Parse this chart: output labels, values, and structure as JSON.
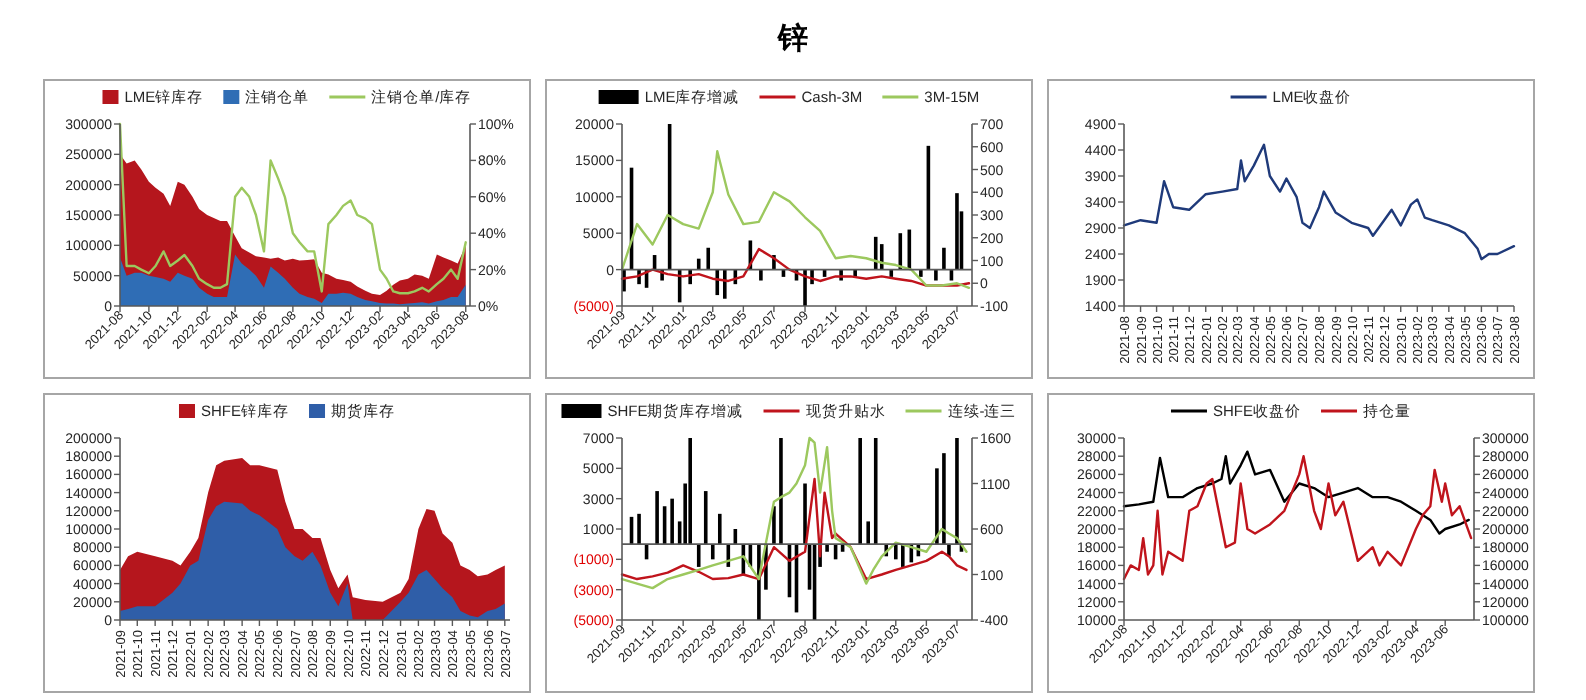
{
  "chart_data": [
    {
      "type": "area",
      "legend": "top",
      "x": [
        "2021-08-01",
        "2021-08-15",
        "2021-09-01",
        "2021-09-15",
        "2021-10-01",
        "2021-10-15",
        "2021-11-01",
        "2021-11-15",
        "2021-12-01",
        "2021-12-15",
        "2022-01-01",
        "2022-01-15",
        "2022-02-01",
        "2022-02-15",
        "2022-03-01",
        "2022-03-15",
        "2022-04-01",
        "2022-04-15",
        "2022-05-01",
        "2022-05-15",
        "2022-06-01",
        "2022-06-15",
        "2022-07-01",
        "2022-07-15",
        "2022-08-01",
        "2022-08-15",
        "2022-09-01",
        "2022-09-15",
        "2022-10-01",
        "2022-10-15",
        "2022-11-01",
        "2022-11-15",
        "2022-12-01",
        "2022-12-15",
        "2023-01-01",
        "2023-01-15",
        "2023-02-01",
        "2023-02-15",
        "2023-03-01",
        "2023-03-15",
        "2023-04-01",
        "2023-04-15",
        "2023-05-01",
        "2023-05-15",
        "2023-06-01",
        "2023-06-15",
        "2023-07-01",
        "2023-07-15",
        "2023-08-01"
      ],
      "series": [
        {
          "name": "LME锌库存",
          "color": "#b5161d",
          "values": [
            250000,
            235000,
            240000,
            225000,
            205000,
            195000,
            185000,
            165000,
            205000,
            200000,
            180000,
            160000,
            150000,
            145000,
            140000,
            140000,
            115000,
            95000,
            88000,
            82000,
            80000,
            78000,
            80000,
            75000,
            78000,
            75000,
            76000,
            77000,
            55000,
            52000,
            45000,
            43000,
            40000,
            32000,
            25000,
            20000,
            18000,
            25000,
            35000,
            42000,
            45000,
            52000,
            50000,
            45000,
            85000,
            80000,
            75000,
            70000,
            100000
          ]
        },
        {
          "name": "注销仓单",
          "color": "#2f6db5",
          "values": [
            80000,
            50000,
            55000,
            55000,
            50000,
            48000,
            45000,
            40000,
            55000,
            50000,
            45000,
            30000,
            20000,
            15000,
            15000,
            15000,
            85000,
            70000,
            60000,
            50000,
            30000,
            65000,
            55000,
            45000,
            30000,
            20000,
            15000,
            12000,
            5000,
            20000,
            20000,
            22000,
            20000,
            15000,
            10000,
            8000,
            5000,
            4000,
            4000,
            3000,
            4000,
            5000,
            6000,
            4000,
            8000,
            10000,
            15000,
            15000,
            35000
          ]
        },
        {
          "name": "注销仓单/库存",
          "color": "#9cc85e",
          "type": "line",
          "axis": "y2",
          "values": [
            100,
            22,
            22,
            20,
            18,
            22,
            30,
            22,
            25,
            28,
            22,
            15,
            12,
            10,
            10,
            12,
            60,
            65,
            60,
            50,
            30,
            80,
            70,
            60,
            40,
            35,
            30,
            30,
            8,
            45,
            50,
            55,
            58,
            50,
            48,
            45,
            20,
            15,
            8,
            7,
            7,
            8,
            10,
            8,
            12,
            15,
            20,
            15,
            35
          ]
        }
      ],
      "xlim": [
        "2021-08-01",
        "2023-08-10"
      ],
      "xticks": [
        "2021-08",
        "2021-10",
        "2021-12",
        "2022-02",
        "2022-04",
        "2022-06",
        "2022-08",
        "2022-10",
        "2022-12",
        "2023-02",
        "2023-04",
        "2023-06",
        "2023-08"
      ],
      "ylim": [
        0,
        300000
      ],
      "yticks": [
        0,
        50000,
        100000,
        150000,
        200000,
        250000,
        300000
      ],
      "y2lim": [
        0,
        100
      ],
      "y2ticks": [
        {
          "value": 0,
          "label": "0%"
        },
        {
          "value": 20,
          "label": "20%"
        },
        {
          "value": 40,
          "label": "40%"
        },
        {
          "value": 60,
          "label": "60%"
        },
        {
          "value": 80,
          "label": "80%"
        },
        {
          "value": 100,
          "label": "100%"
        }
      ]
    },
    {
      "type": "bar",
      "title": "锌",
      "legend": "top",
      "series": [
        {
          "name": "LME库存增减",
          "color": "#000000",
          "x": [
            "2021-09-05",
            "2021-09-20",
            "2021-10-05",
            "2021-10-20",
            "2021-11-05",
            "2021-11-20",
            "2021-12-05",
            "2021-12-25",
            "2022-01-15",
            "2022-02-01",
            "2022-02-20",
            "2022-03-10",
            "2022-03-25",
            "2022-04-15",
            "2022-05-15",
            "2022-06-05",
            "2022-07-01",
            "2022-07-20",
            "2022-08-15",
            "2022-09-01",
            "2022-09-15",
            "2022-10-10",
            "2022-11-12",
            "2022-12-10",
            "2023-01-20",
            "2023-02-01",
            "2023-02-20",
            "2023-03-10",
            "2023-03-28",
            "2023-04-20",
            "2023-05-05",
            "2023-05-20",
            "2023-06-05",
            "2023-06-20",
            "2023-07-01",
            "2023-07-10"
          ],
          "values": [
            -3000,
            14000,
            -2000,
            -2500,
            2000,
            -1500,
            20000,
            -4500,
            -2000,
            1500,
            3000,
            -3500,
            -4000,
            -2000,
            4000,
            -1500,
            2000,
            -1000,
            -1500,
            -5000,
            -2000,
            -1000,
            -1500,
            -1000,
            4500,
            3500,
            -1000,
            5000,
            5500,
            -1000,
            17000,
            -1500,
            3000,
            -1500,
            10500,
            8000
          ]
        },
        {
          "name": "Cash-3M",
          "color": "#c0141c",
          "type": "line",
          "axis": "y2",
          "x": [
            "2021-09-01",
            "2021-10-01",
            "2021-11-01",
            "2021-12-01",
            "2022-01-01",
            "2022-02-01",
            "2022-03-01",
            "2022-04-01",
            "2022-05-01",
            "2022-06-01",
            "2022-07-01",
            "2022-08-01",
            "2022-09-01",
            "2022-10-01",
            "2022-11-01",
            "2022-12-01",
            "2023-01-01",
            "2023-02-01",
            "2023-03-01",
            "2023-04-01",
            "2023-05-01",
            "2023-06-01",
            "2023-07-01",
            "2023-07-25"
          ],
          "values": [
            20,
            30,
            60,
            40,
            30,
            40,
            20,
            10,
            30,
            150,
            110,
            60,
            30,
            10,
            30,
            30,
            20,
            30,
            20,
            10,
            -10,
            -10,
            -10,
            0
          ]
        },
        {
          "name": "3M-15M",
          "color": "#9cc85e",
          "type": "line",
          "axis": "y2",
          "x": [
            "2021-09-01",
            "2021-10-01",
            "2021-11-01",
            "2021-12-01",
            "2022-01-01",
            "2022-02-01",
            "2022-03-01",
            "2022-03-10",
            "2022-04-01",
            "2022-05-01",
            "2022-06-01",
            "2022-07-01",
            "2022-08-01",
            "2022-09-01",
            "2022-10-01",
            "2022-11-01",
            "2022-12-01",
            "2023-01-01",
            "2023-02-01",
            "2023-03-01",
            "2023-04-01",
            "2023-05-01",
            "2023-06-01",
            "2023-07-01",
            "2023-07-25"
          ],
          "values": [
            60,
            260,
            170,
            300,
            260,
            240,
            400,
            580,
            390,
            260,
            270,
            400,
            360,
            290,
            230,
            110,
            120,
            110,
            90,
            80,
            60,
            -10,
            -10,
            0,
            -20
          ]
        }
      ],
      "xlim": [
        "2021-09-01",
        "2023-07-31"
      ],
      "xticks": [
        "2021-09",
        "2021-11",
        "2022-01",
        "2022-03",
        "2022-05",
        "2022-07",
        "2022-09",
        "2022-11",
        "2023-01",
        "2023-03",
        "2023-05",
        "2023-07"
      ],
      "ylim": [
        -5000,
        20000
      ],
      "yticks": [
        {
          "value": -5000,
          "label": "(5000)"
        },
        0,
        5000,
        10000,
        15000,
        20000
      ],
      "y2lim": [
        -100,
        700
      ],
      "y2ticks": [
        -100,
        0,
        100,
        200,
        300,
        400,
        500,
        600,
        700
      ]
    },
    {
      "type": "line",
      "legend": "top",
      "series": [
        {
          "name": "LME收盘价",
          "color": "#1f3a7a",
          "x": [
            "2021-08-01",
            "2021-09-01",
            "2021-10-01",
            "2021-10-15",
            "2021-11-01",
            "2021-12-01",
            "2022-01-01",
            "2022-02-01",
            "2022-03-01",
            "2022-03-08",
            "2022-03-15",
            "2022-04-01",
            "2022-04-20",
            "2022-05-01",
            "2022-05-20",
            "2022-06-01",
            "2022-06-20",
            "2022-07-01",
            "2022-07-15",
            "2022-08-01",
            "2022-08-10",
            "2022-09-01",
            "2022-10-01",
            "2022-11-01",
            "2022-11-10",
            "2022-12-01",
            "2022-12-15",
            "2023-01-01",
            "2023-01-20",
            "2023-02-01",
            "2023-02-15",
            "2023-03-01",
            "2023-04-01",
            "2023-05-01",
            "2023-05-25",
            "2023-06-01",
            "2023-06-15",
            "2023-07-01",
            "2023-08-01"
          ],
          "values": [
            2950,
            3050,
            3000,
            3800,
            3300,
            3250,
            3550,
            3600,
            3650,
            4200,
            3800,
            4100,
            4500,
            3900,
            3600,
            3850,
            3500,
            3000,
            2900,
            3300,
            3600,
            3200,
            3000,
            2900,
            2750,
            3050,
            3250,
            2950,
            3350,
            3450,
            3100,
            3050,
            2950,
            2800,
            2500,
            2300,
            2400,
            2400,
            2550
          ]
        }
      ],
      "xlim": [
        "2021-08-01",
        "2023-08-01"
      ],
      "xticks": [
        "2021-08",
        "2021-09",
        "2021-10",
        "2021-11",
        "2021-12",
        "2022-01",
        "2022-02",
        "2022-03",
        "2022-04",
        "2022-05",
        "2022-06",
        "2022-07",
        "2022-08",
        "2022-09",
        "2022-10",
        "2022-11",
        "2022-12",
        "2023-01",
        "2023-02",
        "2023-03",
        "2023-04",
        "2023-05",
        "2023-06",
        "2023-07",
        "2023-08"
      ],
      "ylim": [
        1400,
        4900
      ],
      "yticks": [
        1400,
        1900,
        2400,
        2900,
        3400,
        3900,
        4400,
        4900
      ]
    },
    {
      "type": "area",
      "legend": "top",
      "x": [
        "2021-09-01",
        "2021-09-15",
        "2021-10-01",
        "2021-11-01",
        "2021-12-01",
        "2021-12-15",
        "2022-01-01",
        "2022-01-15",
        "2022-02-01",
        "2022-02-15",
        "2022-03-01",
        "2022-04-01",
        "2022-04-15",
        "2022-05-01",
        "2022-06-01",
        "2022-06-15",
        "2022-07-01",
        "2022-07-15",
        "2022-08-01",
        "2022-08-15",
        "2022-09-01",
        "2022-09-15",
        "2022-10-01",
        "2022-10-10",
        "2022-11-01",
        "2022-12-01",
        "2023-01-01",
        "2023-01-15",
        "2023-02-01",
        "2023-02-15",
        "2023-03-01",
        "2023-03-15",
        "2023-04-01",
        "2023-04-15",
        "2023-05-01",
        "2023-05-15",
        "2023-06-01",
        "2023-06-15",
        "2023-07-01"
      ],
      "series": [
        {
          "name": "SHFE锌库存",
          "color": "#b5161d",
          "values": [
            55000,
            70000,
            75000,
            70000,
            65000,
            60000,
            75000,
            90000,
            140000,
            170000,
            175000,
            178000,
            170000,
            170000,
            165000,
            130000,
            100000,
            100000,
            90000,
            90000,
            55000,
            35000,
            50000,
            25000,
            22000,
            20000,
            30000,
            45000,
            100000,
            122000,
            120000,
            95000,
            85000,
            60000,
            55000,
            48000,
            50000,
            55000,
            60000
          ]
        },
        {
          "name": "期货库存",
          "color": "#2f5ea8",
          "values": [
            10000,
            12000,
            15000,
            15000,
            30000,
            40000,
            60000,
            65000,
            110000,
            125000,
            130000,
            128000,
            120000,
            115000,
            100000,
            80000,
            70000,
            65000,
            75000,
            60000,
            30000,
            15000,
            40000,
            0,
            0,
            0,
            20000,
            30000,
            50000,
            55000,
            45000,
            35000,
            25000,
            10000,
            5000,
            3000,
            10000,
            12000,
            18000
          ]
        }
      ],
      "xlim": [
        "2021-09-01",
        "2023-07-10"
      ],
      "xticks": [
        "2021-09",
        "2021-10",
        "2021-11",
        "2021-12",
        "2022-01",
        "2022-02",
        "2022-03",
        "2022-04",
        "2022-05",
        "2022-06",
        "2022-07",
        "2022-08",
        "2022-09",
        "2022-10",
        "2022-11",
        "2022-12",
        "2023-01",
        "2023-02",
        "2023-03",
        "2023-04",
        "2023-05",
        "2023-06",
        "2023-07"
      ],
      "ylim": [
        0,
        200000
      ],
      "yticks": [
        0,
        20000,
        40000,
        60000,
        80000,
        100000,
        120000,
        140000,
        160000,
        180000,
        200000
      ]
    },
    {
      "type": "bar",
      "legend": "top",
      "series": [
        {
          "name": "SHFE期货库存增减",
          "color": "#000000",
          "x": [
            "2021-09-20",
            "2021-10-05",
            "2021-10-20",
            "2021-11-10",
            "2021-11-25",
            "2021-12-10",
            "2021-12-25",
            "2022-01-05",
            "2022-01-15",
            "2022-02-01",
            "2022-02-15",
            "2022-03-01",
            "2022-03-15",
            "2022-04-01",
            "2022-04-15",
            "2022-05-01",
            "2022-05-15",
            "2022-06-01",
            "2022-06-15",
            "2022-07-01",
            "2022-07-15",
            "2022-08-01",
            "2022-08-15",
            "2022-09-01",
            "2022-09-10",
            "2022-09-20",
            "2022-10-01",
            "2022-10-15",
            "2022-11-01",
            "2022-11-15",
            "2022-12-20",
            "2023-01-05",
            "2023-01-20",
            "2023-02-10",
            "2023-03-01",
            "2023-03-15",
            "2023-04-01",
            "2023-04-15",
            "2023-05-22",
            "2023-06-05",
            "2023-06-15",
            "2023-07-01",
            "2023-07-10"
          ],
          "values": [
            1800,
            2000,
            -1000,
            3500,
            2500,
            3000,
            1500,
            4000,
            7000,
            -1500,
            3500,
            -1000,
            2000,
            -1500,
            1000,
            -2000,
            -1500,
            -5000,
            -3000,
            2500,
            7000,
            -3500,
            -4500,
            4000,
            -3000,
            -5000,
            -1500,
            -500,
            -1000,
            -500,
            7000,
            1500,
            7000,
            -800,
            -1000,
            -1500,
            -1200,
            -800,
            5000,
            6000,
            -800,
            7000,
            -500
          ]
        },
        {
          "name": "现货升贴水",
          "color": "#c0141c",
          "type": "line",
          "axis": "y2",
          "x": [
            "2021-09-01",
            "2021-10-01",
            "2021-11-01",
            "2021-12-01",
            "2022-01-01",
            "2022-02-01",
            "2022-03-01",
            "2022-04-01",
            "2022-05-01",
            "2022-06-01",
            "2022-07-01",
            "2022-08-01",
            "2022-09-01",
            "2022-09-20",
            "2022-10-01",
            "2022-10-10",
            "2022-10-25",
            "2022-11-01",
            "2022-12-01",
            "2023-01-01",
            "2023-02-01",
            "2023-03-01",
            "2023-04-01",
            "2023-05-01",
            "2023-06-01",
            "2023-06-15",
            "2023-07-01",
            "2023-07-20"
          ],
          "values": [
            100,
            50,
            80,
            120,
            200,
            130,
            50,
            60,
            100,
            50,
            400,
            250,
            350,
            1150,
            300,
            1000,
            500,
            550,
            400,
            50,
            100,
            150,
            200,
            250,
            350,
            300,
            200,
            150
          ]
        },
        {
          "name": "连续-连三",
          "color": "#9cc85e",
          "type": "line",
          "axis": "y2",
          "x": [
            "2021-09-01",
            "2021-10-01",
            "2021-11-01",
            "2021-12-01",
            "2022-01-01",
            "2022-02-01",
            "2022-03-01",
            "2022-04-01",
            "2022-05-01",
            "2022-06-01",
            "2022-07-01",
            "2022-07-15",
            "2022-08-01",
            "2022-08-15",
            "2022-09-01",
            "2022-09-10",
            "2022-09-20",
            "2022-10-01",
            "2022-10-15",
            "2022-10-25",
            "2022-11-01",
            "2022-12-01",
            "2023-01-01",
            "2023-01-15",
            "2023-02-01",
            "2023-03-01",
            "2023-04-01",
            "2023-05-01",
            "2023-06-01",
            "2023-06-15",
            "2023-07-01",
            "2023-07-20"
          ],
          "values": [
            50,
            0,
            -50,
            50,
            100,
            150,
            200,
            250,
            300,
            50,
            900,
            950,
            1000,
            1100,
            1300,
            1600,
            1550,
            1000,
            1500,
            800,
            500,
            400,
            0,
            150,
            300,
            450,
            400,
            350,
            600,
            550,
            500,
            350
          ]
        }
      ],
      "xlim": [
        "2021-09-01",
        "2023-07-31"
      ],
      "xticks": [
        "2021-09",
        "2021-11",
        "2022-01",
        "2022-03",
        "2022-05",
        "2022-07",
        "2022-09",
        "2022-11",
        "2023-01",
        "2023-03",
        "2023-05",
        "2023-07"
      ],
      "ylim": [
        -5000,
        7000
      ],
      "yticks": [
        {
          "value": -5000,
          "label": "(5000)"
        },
        {
          "value": -3000,
          "label": "(3000)"
        },
        {
          "value": -1000,
          "label": "(1000)"
        },
        1000,
        3000,
        5000,
        7000
      ],
      "y2lim": [
        -400,
        1600
      ],
      "y2ticks": [
        -400,
        100,
        600,
        1100,
        1600
      ]
    },
    {
      "type": "line",
      "legend": "top",
      "series": [
        {
          "name": "SHFE收盘价",
          "color": "#000000",
          "x": [
            "2021-08-01",
            "2021-09-01",
            "2021-10-01",
            "2021-10-15",
            "2021-11-01",
            "2021-12-01",
            "2022-01-01",
            "2022-02-01",
            "2022-02-20",
            "2022-03-01",
            "2022-03-10",
            "2022-04-01",
            "2022-04-15",
            "2022-05-01",
            "2022-06-01",
            "2022-07-01",
            "2022-08-01",
            "2022-09-01",
            "2022-10-01",
            "2022-11-01",
            "2022-12-01",
            "2023-01-01",
            "2023-02-01",
            "2023-03-01",
            "2023-04-01",
            "2023-05-01",
            "2023-05-20",
            "2023-06-01",
            "2023-07-01",
            "2023-07-20"
          ],
          "values": [
            22500,
            22700,
            23000,
            27800,
            23500,
            23500,
            24500,
            25000,
            25500,
            28000,
            25000,
            27000,
            28500,
            26000,
            26500,
            23000,
            25000,
            24500,
            23500,
            24000,
            24500,
            23500,
            23500,
            23000,
            22000,
            21000,
            19500,
            20000,
            20500,
            21000
          ]
        },
        {
          "name": "持仓量",
          "color": "#c0141c",
          "axis": "y2",
          "x": [
            "2021-08-01",
            "2021-08-15",
            "2021-09-01",
            "2021-09-10",
            "2021-09-20",
            "2021-10-01",
            "2021-10-10",
            "2021-10-20",
            "2021-11-01",
            "2021-12-01",
            "2021-12-15",
            "2022-01-01",
            "2022-01-20",
            "2022-02-01",
            "2022-03-01",
            "2022-03-20",
            "2022-04-01",
            "2022-04-15",
            "2022-05-01",
            "2022-06-01",
            "2022-07-01",
            "2022-08-01",
            "2022-08-10",
            "2022-09-01",
            "2022-09-15",
            "2022-10-01",
            "2022-10-15",
            "2022-11-01",
            "2022-12-01",
            "2023-01-01",
            "2023-01-15",
            "2023-02-01",
            "2023-03-01",
            "2023-04-01",
            "2023-04-15",
            "2023-05-01",
            "2023-05-10",
            "2023-05-25",
            "2023-06-01",
            "2023-06-15",
            "2023-07-01",
            "2023-07-25"
          ],
          "values": [
            145000,
            160000,
            155000,
            190000,
            150000,
            160000,
            220000,
            150000,
            175000,
            165000,
            220000,
            225000,
            250000,
            255000,
            180000,
            185000,
            250000,
            200000,
            195000,
            205000,
            220000,
            260000,
            280000,
            220000,
            200000,
            250000,
            215000,
            230000,
            165000,
            180000,
            160000,
            175000,
            160000,
            200000,
            215000,
            225000,
            265000,
            230000,
            250000,
            215000,
            225000,
            190000
          ]
        }
      ],
      "xlim": [
        "2021-08-01",
        "2023-07-31"
      ],
      "xticks": [
        "2021-08",
        "2021-10",
        "2021-12",
        "2022-02",
        "2022-04",
        "2022-06",
        "2022-08",
        "2022-10",
        "2022-12",
        "2023-02",
        "2023-04",
        "2023-06"
      ],
      "ylim": [
        10000,
        30000
      ],
      "yticks": [
        10000,
        12000,
        14000,
        16000,
        18000,
        20000,
        22000,
        24000,
        26000,
        28000,
        30000
      ],
      "y2lim": [
        100000,
        300000
      ],
      "y2ticks": [
        100000,
        120000,
        140000,
        160000,
        180000,
        200000,
        220000,
        240000,
        260000,
        280000,
        300000
      ]
    }
  ]
}
